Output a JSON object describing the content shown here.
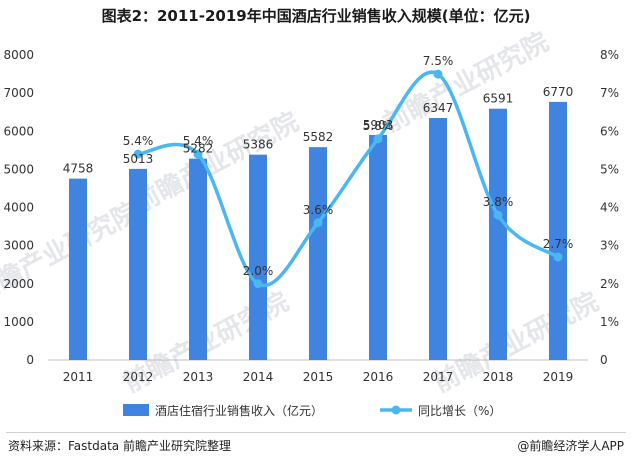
{
  "title": "图表2：2011-2019年中国酒店行业销售收入规模(单位：亿元)",
  "source": "资料来源：Fastdata 前瞻产业研究院整理",
  "brand": "@前瞻经济学人APP",
  "watermark": "前瞻产业研究院",
  "colors": {
    "bar": "#3f84e0",
    "line": "#4ab7f0",
    "text": "#333333",
    "axis": "#bfbfbf"
  },
  "chart_data": {
    "type": "bar",
    "categories": [
      "2011",
      "2012",
      "2013",
      "2014",
      "2015",
      "2016",
      "2017",
      "2018",
      "2019"
    ],
    "series": [
      {
        "name": "酒店住宿行业销售收入（亿元）",
        "type": "bar",
        "axis": "left",
        "values": [
          4758,
          5013,
          5282,
          5386,
          5582,
          5903,
          6347,
          6591,
          6770
        ],
        "labels": [
          "4758",
          "5013",
          "5282",
          "5386",
          "5582",
          "5903",
          "6347",
          "6591",
          "6770"
        ]
      },
      {
        "name": "同比增长（%）",
        "type": "line",
        "axis": "right",
        "values": [
          null,
          5.4,
          5.4,
          2.0,
          3.6,
          5.8,
          7.5,
          3.8,
          2.7
        ],
        "labels": [
          "",
          "5.4%",
          "5.4%",
          "2.0%",
          "3.6%",
          "5.8%",
          "7.5%",
          "3.8%",
          "2.7%"
        ]
      }
    ],
    "ylim_left": [
      0,
      8000
    ],
    "yticks_left": [
      "0",
      "1000",
      "2000",
      "3000",
      "4000",
      "5000",
      "6000",
      "7000",
      "8000"
    ],
    "ylim_right": [
      0,
      8
    ],
    "yticks_right": [
      "0",
      "1%",
      "2%",
      "3%",
      "4%",
      "5%",
      "6%",
      "7%",
      "8%"
    ],
    "grid": false,
    "legend": "bottom"
  }
}
